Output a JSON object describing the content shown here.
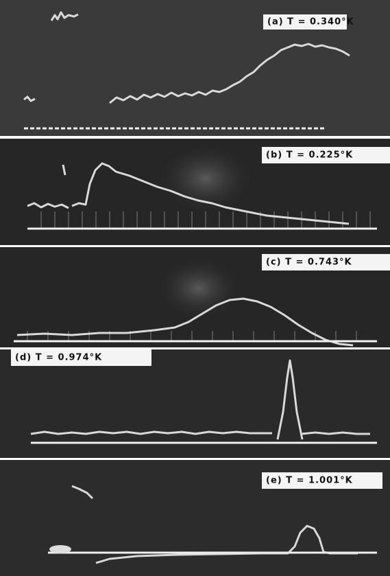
{
  "panels": [
    {
      "label": "(a) T = 0.340°K"
    },
    {
      "label": "(b) T = 0.225°K"
    },
    {
      "label": "(c) T = 0.743°K"
    },
    {
      "label": "(d) T = 0.974°K"
    },
    {
      "label": "(e) T = 1.001°K"
    }
  ]
}
